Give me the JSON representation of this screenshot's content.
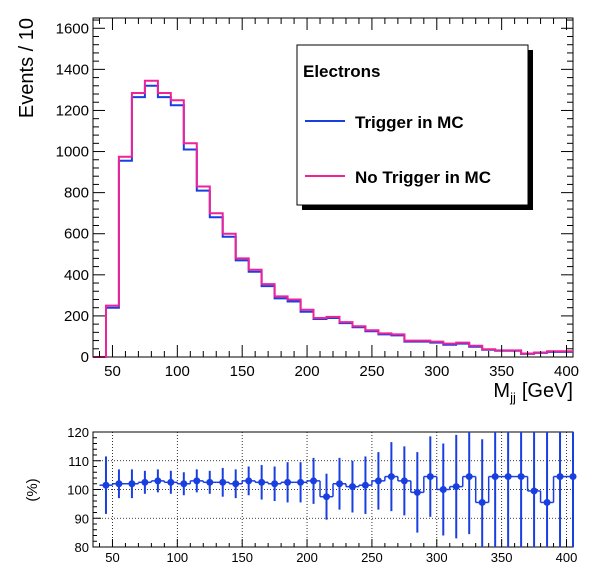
{
  "chart_data": [
    {
      "type": "line",
      "subtype": "step-histogram",
      "title": "",
      "xlabel": "M",
      "xlabel_sub": "jj",
      "xlabel_unit": "[GeV]",
      "ylabel": "Events / 10",
      "xlim": [
        35,
        405
      ],
      "ylim": [
        0,
        1650
      ],
      "xticks": [
        50,
        100,
        150,
        200,
        250,
        300,
        350,
        400
      ],
      "yticks": [
        0,
        200,
        400,
        600,
        800,
        1000,
        1200,
        1400,
        1600
      ],
      "bin_edges": [
        35,
        45,
        55,
        65,
        75,
        85,
        95,
        105,
        115,
        125,
        135,
        145,
        155,
        165,
        175,
        185,
        195,
        205,
        215,
        225,
        235,
        245,
        255,
        265,
        275,
        285,
        295,
        305,
        315,
        325,
        335,
        345,
        355,
        365,
        375,
        385,
        395,
        405
      ],
      "legend": {
        "title": "Electrons",
        "position": "top-right",
        "entries": [
          "Trigger in MC",
          "No Trigger in MC"
        ]
      },
      "series": [
        {
          "name": "Trigger in MC",
          "color": "#1a3fe0",
          "values": [
            0,
            240,
            955,
            1265,
            1320,
            1265,
            1225,
            1010,
            810,
            680,
            585,
            470,
            415,
            345,
            285,
            270,
            220,
            185,
            190,
            165,
            145,
            125,
            110,
            105,
            75,
            75,
            70,
            60,
            65,
            50,
            35,
            30,
            30,
            15,
            20,
            25,
            25
          ]
        },
        {
          "name": "No Trigger in MC",
          "color": "#ee2299",
          "values": [
            0,
            250,
            975,
            1285,
            1345,
            1285,
            1250,
            1040,
            830,
            700,
            600,
            480,
            425,
            355,
            295,
            280,
            230,
            190,
            195,
            170,
            150,
            130,
            115,
            110,
            80,
            80,
            75,
            65,
            70,
            55,
            38,
            32,
            32,
            17,
            22,
            28,
            28
          ]
        }
      ]
    },
    {
      "type": "scatter",
      "subtype": "ratio-with-error-bars",
      "ylabel": "(%)",
      "xlim": [
        35,
        405
      ],
      "ylim": [
        80,
        120
      ],
      "xticks": [
        50,
        100,
        150,
        200,
        250,
        300,
        350,
        400
      ],
      "yticks": [
        80,
        90,
        100,
        110,
        120
      ],
      "grid": true,
      "color": "#1a3fe0",
      "x": [
        45,
        55,
        65,
        75,
        85,
        95,
        105,
        115,
        125,
        135,
        145,
        155,
        165,
        175,
        185,
        195,
        205,
        215,
        225,
        235,
        245,
        255,
        265,
        275,
        285,
        295,
        305,
        315,
        325,
        335,
        345,
        355,
        365,
        375,
        385,
        395,
        405
      ],
      "y": [
        101.5,
        102,
        102,
        102.5,
        103,
        102.5,
        102,
        103,
        102.5,
        102.5,
        102,
        103,
        102.5,
        102,
        102.5,
        102.5,
        103,
        97.5,
        102,
        101,
        101.5,
        103,
        104.5,
        103,
        99,
        104.5,
        100,
        101,
        104.5,
        95.5,
        104.5,
        104.5,
        104.5,
        99.5,
        95.5,
        104.5,
        104.5
      ],
      "err": [
        10,
        5,
        5,
        4,
        4,
        4,
        4,
        4,
        4,
        5,
        5,
        5,
        6,
        6,
        7,
        7,
        8,
        8,
        9,
        9,
        10,
        10,
        12,
        12,
        14,
        14,
        16,
        18,
        20,
        22,
        25,
        28,
        30,
        35,
        40,
        45,
        50
      ]
    }
  ]
}
